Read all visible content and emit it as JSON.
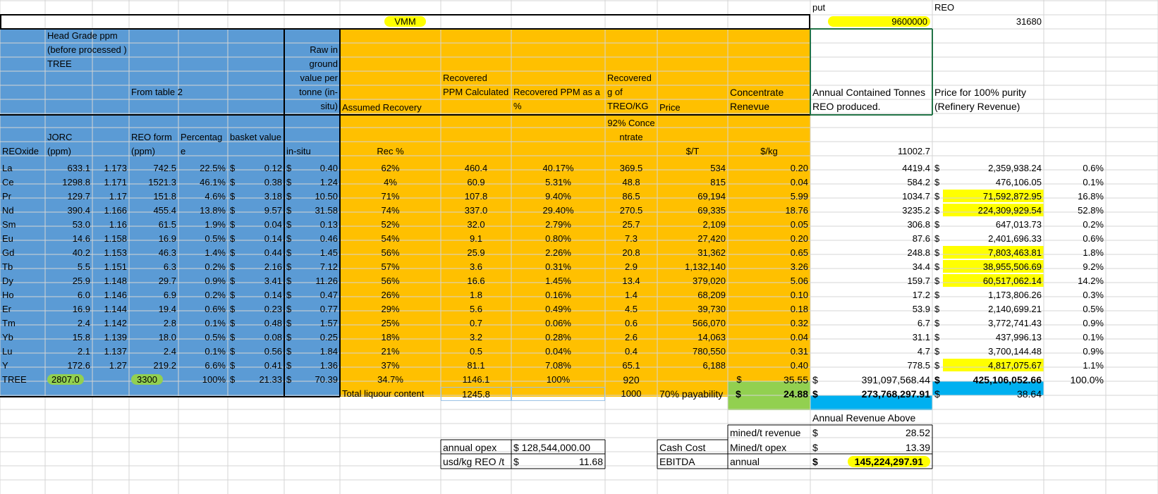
{
  "top_labels": {
    "put": "put",
    "reo": "REO"
  },
  "title": "VMM",
  "top_values": {
    "put_value": "9600000",
    "reo_value": "31680"
  },
  "headers": {
    "head_grade": "Head Grade ppm (before processed ) TREE",
    "from_table2": "From table 2",
    "raw_value": "Raw in ground value per tonne (in-situ)",
    "assumed_recovery": "Assumed Recovery",
    "recovered_ppm_calc": "Recovered PPM Calculated",
    "recovered_ppm_pct": "Recovered PPM as a %",
    "recovered_g": "Recovered g of TREO/KG",
    "price": "Price",
    "concentrate_revenue": "Concentrate Renevue",
    "annual_contained": "Annual Contained Tonnes REO produced.",
    "price_100": "Price for 100% purity (Refinery Revenue)"
  },
  "subheaders": {
    "reoxide": "REOxide",
    "jorc": "JORC (ppm)",
    "reo_form": "REO form (ppm)",
    "percentage": "Percentage",
    "basket": "basket value",
    "insitu": "in-situ",
    "rec_pct": "Rec %",
    "conc92": "92% Concentrate",
    "usd_t": "$/T",
    "usd_kg": "$/kg",
    "annual_total": "11002.7"
  },
  "currency": "$",
  "rows": [
    [
      "La",
      "633.1",
      "1.173",
      "742.5",
      "22.5%",
      "0.12",
      "0.40",
      "62%",
      "460.4",
      "40.17%",
      "369.5",
      "534",
      "0.20",
      "4419.4",
      "2,359,938.24",
      "0.6%",
      false
    ],
    [
      "Ce",
      "1298.8",
      "1.171",
      "1521.3",
      "46.1%",
      "0.38",
      "1.24",
      "4%",
      "60.9",
      "5.31%",
      "48.8",
      "815",
      "0.04",
      "584.2",
      "476,106.05",
      "0.1%",
      false
    ],
    [
      "Pr",
      "129.7",
      "1.17",
      "151.8",
      "4.6%",
      "3.18",
      "10.50",
      "71%",
      "107.8",
      "9.40%",
      "86.5",
      "69,194",
      "5.99",
      "1034.7",
      "71,592,872.95",
      "16.8%",
      true
    ],
    [
      "Nd",
      "390.4",
      "1.166",
      "455.4",
      "13.8%",
      "9.57",
      "31.58",
      "74%",
      "337.0",
      "29.40%",
      "270.5",
      "69,335",
      "18.76",
      "3235.2",
      "224,309,929.54",
      "52.8%",
      true
    ],
    [
      "Sm",
      "53.0",
      "1.16",
      "61.5",
      "1.9%",
      "0.04",
      "0.13",
      "52%",
      "32.0",
      "2.79%",
      "25.7",
      "2,109",
      "0.05",
      "306.8",
      "647,013.73",
      "0.2%",
      false
    ],
    [
      "Eu",
      "14.6",
      "1.158",
      "16.9",
      "0.5%",
      "0.14",
      "0.46",
      "54%",
      "9.1",
      "0.80%",
      "7.3",
      "27,420",
      "0.20",
      "87.6",
      "2,401,696.33",
      "0.6%",
      false
    ],
    [
      "Gd",
      "40.2",
      "1.153",
      "46.3",
      "1.4%",
      "0.44",
      "1.45",
      "56%",
      "25.9",
      "2.26%",
      "20.8",
      "31,362",
      "0.65",
      "248.8",
      "7,803,463.81",
      "1.8%",
      true
    ],
    [
      "Tb",
      "5.5",
      "1.151",
      "6.3",
      "0.2%",
      "2.16",
      "7.12",
      "57%",
      "3.6",
      "0.31%",
      "2.9",
      "1,132,140",
      "3.26",
      "34.4",
      "38,955,506.69",
      "9.2%",
      true
    ],
    [
      "Dy",
      "25.9",
      "1.148",
      "29.7",
      "0.9%",
      "3.41",
      "11.26",
      "56%",
      "16.6",
      "1.45%",
      "13.4",
      "379,020",
      "5.06",
      "159.7",
      "60,517,062.14",
      "14.2%",
      true
    ],
    [
      "Ho",
      "6.0",
      "1.146",
      "6.9",
      "0.2%",
      "0.14",
      "0.47",
      "26%",
      "1.8",
      "0.16%",
      "1.4",
      "68,209",
      "0.10",
      "17.2",
      "1,173,806.26",
      "0.3%",
      false
    ],
    [
      "Er",
      "16.9",
      "1.144",
      "19.4",
      "0.6%",
      "0.23",
      "0.77",
      "29%",
      "5.6",
      "0.49%",
      "4.5",
      "39,730",
      "0.18",
      "53.9",
      "2,140,699.21",
      "0.5%",
      false
    ],
    [
      "Tm",
      "2.4",
      "1.142",
      "2.8",
      "0.1%",
      "0.48",
      "1.57",
      "25%",
      "0.7",
      "0.06%",
      "0.6",
      "566,070",
      "0.32",
      "6.7",
      "3,772,741.43",
      "0.9%",
      false
    ],
    [
      "Yb",
      "15.8",
      "1.139",
      "18.0",
      "0.5%",
      "0.08",
      "0.25",
      "18%",
      "3.2",
      "0.28%",
      "2.6",
      "14,063",
      "0.04",
      "31.1",
      "437,996.13",
      "0.1%",
      false
    ],
    [
      "Lu",
      "2.1",
      "1.137",
      "2.4",
      "0.1%",
      "0.56",
      "1.84",
      "21%",
      "0.5",
      "0.04%",
      "0.4",
      "780,550",
      "0.31",
      "4.7",
      "3,700,144.48",
      "0.9%",
      false
    ],
    [
      "Y",
      "172.6",
      "1.27",
      "219.2",
      "6.6%",
      "0.41",
      "1.36",
      "37%",
      "81.1",
      "7.08%",
      "65.1",
      "6,188",
      "0.40",
      "778.5",
      "4,817,075.67",
      "1.1%",
      true
    ]
  ],
  "tree": {
    "label": "TREE",
    "jorc": "2807.0",
    "reo": "3300",
    "pct": "100%",
    "basket": "21.33",
    "insitu": "70.39",
    "rec": "34.7%",
    "rec_ppm": "1146.1",
    "rec_pct": "100%",
    "g": "920",
    "conc": "35.55",
    "annual": "391,097,568.44",
    "price100": "425,106,052.66",
    "share": "100.0%"
  },
  "liquor": {
    "label": "Total liquour content",
    "value": "1245.8",
    "g": "1000",
    "payability": "70% payability",
    "conc": "24.88",
    "annual": "273,768,297.91",
    "price": "38.64"
  },
  "summary": {
    "annual_above": "Annual Revenue Above",
    "mined_rev_label": "mined/t revenue",
    "mined_rev": "28.52",
    "mined_opex_label": "Mined/t opex",
    "mined_opex": "13.39",
    "annual_label": "annual",
    "ebitda_value": "145,224,297.91",
    "cash_cost": "Cash Cost",
    "ebitda": "EBITDA",
    "annual_opex_label": "annual opex",
    "annual_opex": "$ 128,544,000.00",
    "usd_kg_label": "usd/kg REO /t",
    "usd_kg": "11.68"
  }
}
